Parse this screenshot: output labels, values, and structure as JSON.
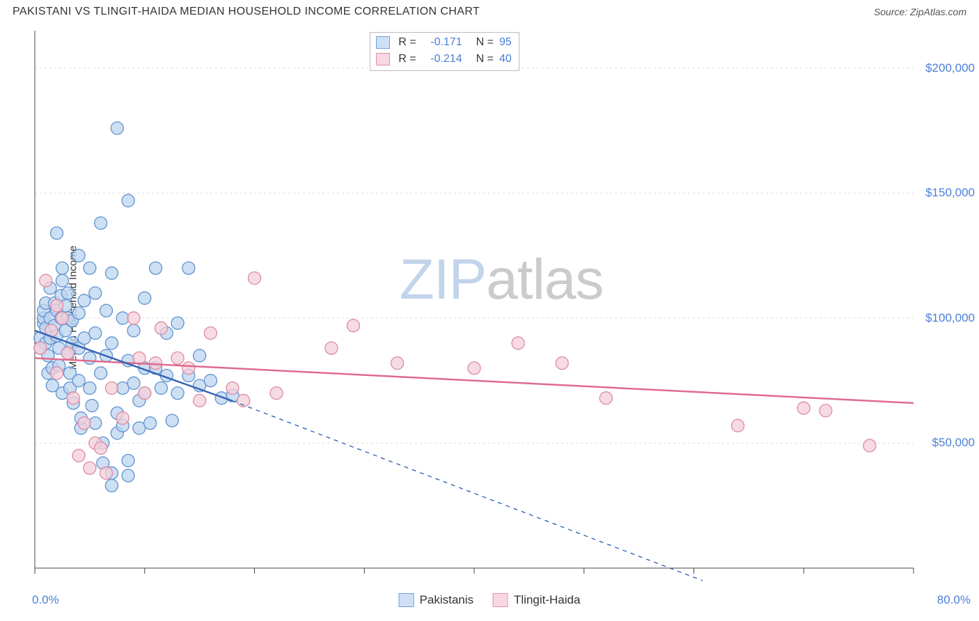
{
  "header": {
    "title": "PAKISTANI VS TLINGIT-HAIDA MEDIAN HOUSEHOLD INCOME CORRELATION CHART",
    "source": "Source: ZipAtlas.com"
  },
  "watermark": {
    "part1": "ZIP",
    "part2": "atlas"
  },
  "y_axis": {
    "label": "Median Household Income",
    "min": 0,
    "max": 215000,
    "ticks": [
      50000,
      100000,
      150000,
      200000
    ],
    "tick_labels": [
      "$50,000",
      "$100,000",
      "$150,000",
      "$200,000"
    ],
    "grid_at": [
      50000,
      100000,
      150000,
      200000
    ],
    "grid_color": "#dadada"
  },
  "x_axis": {
    "min": 0,
    "max": 80,
    "min_label": "0.0%",
    "max_label": "80.0%",
    "ticks": [
      0,
      10,
      20,
      30,
      40,
      50,
      60,
      70,
      80
    ]
  },
  "axis_line_color": "#444444",
  "correlation_legend": {
    "rows": [
      {
        "swatch_fill": "#cfe0f5",
        "swatch_border": "#6f9fd8",
        "r_label": "R = ",
        "r_value": "-0.171",
        "n_label": "N = ",
        "n_value": "95"
      },
      {
        "swatch_fill": "#f8d7e0",
        "swatch_border": "#e48faa",
        "r_label": "R = ",
        "r_value": "-0.214",
        "n_label": "N = ",
        "n_value": "40"
      }
    ]
  },
  "bottom_legend": {
    "items": [
      {
        "swatch_fill": "#cfe0f5",
        "swatch_border": "#6f9fd8",
        "label": "Pakistanis"
      },
      {
        "swatch_fill": "#f8d7e0",
        "swatch_border": "#e48faa",
        "label": "Tlingit-Haida"
      }
    ]
  },
  "series": {
    "blue": {
      "fill": "#bcd4ef",
      "stroke": "#5f92cf",
      "opacity": 0.75,
      "radius": 9,
      "points": [
        [
          0.5,
          92000
        ],
        [
          0.5,
          88000
        ],
        [
          0.8,
          98000
        ],
        [
          0.8,
          100000
        ],
        [
          0.8,
          103000
        ],
        [
          1.0,
          106000
        ],
        [
          1.0,
          96000
        ],
        [
          1.0,
          90000
        ],
        [
          1.2,
          85000
        ],
        [
          1.2,
          78000
        ],
        [
          1.4,
          112000
        ],
        [
          1.4,
          100000
        ],
        [
          1.4,
          92000
        ],
        [
          1.6,
          80000
        ],
        [
          1.6,
          73000
        ],
        [
          1.8,
          106000
        ],
        [
          1.8,
          97000
        ],
        [
          2.0,
          134000
        ],
        [
          2.0,
          103000
        ],
        [
          2.0,
          93000
        ],
        [
          2.2,
          88000
        ],
        [
          2.2,
          81000
        ],
        [
          2.4,
          109000
        ],
        [
          2.4,
          100000
        ],
        [
          2.5,
          120000
        ],
        [
          2.5,
          115000
        ],
        [
          2.5,
          70000
        ],
        [
          2.8,
          105000
        ],
        [
          2.8,
          95000
        ],
        [
          3.0,
          110000
        ],
        [
          3.0,
          100000
        ],
        [
          3.0,
          86000
        ],
        [
          3.2,
          78000
        ],
        [
          3.2,
          72000
        ],
        [
          3.4,
          99000
        ],
        [
          3.4,
          90000
        ],
        [
          3.5,
          66000
        ],
        [
          4.0,
          125000
        ],
        [
          4.0,
          102000
        ],
        [
          4.0,
          88000
        ],
        [
          4.0,
          75000
        ],
        [
          4.2,
          56000
        ],
        [
          4.2,
          60000
        ],
        [
          4.5,
          107000
        ],
        [
          4.5,
          92000
        ],
        [
          5.0,
          120000
        ],
        [
          5.0,
          84000
        ],
        [
          5.0,
          72000
        ],
        [
          5.2,
          65000
        ],
        [
          5.5,
          110000
        ],
        [
          5.5,
          94000
        ],
        [
          5.5,
          58000
        ],
        [
          6.0,
          138000
        ],
        [
          6.0,
          78000
        ],
        [
          6.2,
          42000
        ],
        [
          6.2,
          50000
        ],
        [
          6.5,
          103000
        ],
        [
          6.5,
          85000
        ],
        [
          7.0,
          118000
        ],
        [
          7.0,
          90000
        ],
        [
          7.0,
          38000
        ],
        [
          7.0,
          33000
        ],
        [
          7.5,
          176000
        ],
        [
          7.5,
          62000
        ],
        [
          7.5,
          54000
        ],
        [
          8.0,
          100000
        ],
        [
          8.0,
          72000
        ],
        [
          8.0,
          57000
        ],
        [
          8.5,
          147000
        ],
        [
          8.5,
          83000
        ],
        [
          8.5,
          43000
        ],
        [
          8.5,
          37000
        ],
        [
          9.0,
          95000
        ],
        [
          9.0,
          74000
        ],
        [
          9.5,
          67000
        ],
        [
          9.5,
          56000
        ],
        [
          10.0,
          108000
        ],
        [
          10.0,
          80000
        ],
        [
          10.0,
          70000
        ],
        [
          10.5,
          58000
        ],
        [
          11.0,
          120000
        ],
        [
          11.0,
          80000
        ],
        [
          11.5,
          72000
        ],
        [
          12.0,
          94000
        ],
        [
          12.0,
          77000
        ],
        [
          12.5,
          59000
        ],
        [
          13.0,
          98000
        ],
        [
          13.0,
          70000
        ],
        [
          14.0,
          120000
        ],
        [
          14.0,
          77000
        ],
        [
          15.0,
          85000
        ],
        [
          15.0,
          73000
        ],
        [
          16.0,
          75000
        ],
        [
          17.0,
          68000
        ],
        [
          18.0,
          69000
        ]
      ],
      "trend": {
        "color": "#3664b4",
        "width": 2.5,
        "solid_from_x": 0,
        "solid_to_x": 18,
        "y_at_x0": 95000,
        "y_at_xmax": -30000
      }
    },
    "pink": {
      "fill": "#f4cfd9",
      "stroke": "#de89a3",
      "opacity": 0.75,
      "radius": 9,
      "points": [
        [
          0.5,
          88000
        ],
        [
          1.0,
          115000
        ],
        [
          1.5,
          95000
        ],
        [
          2.0,
          105000
        ],
        [
          2.0,
          78000
        ],
        [
          2.5,
          100000
        ],
        [
          3.0,
          86000
        ],
        [
          3.5,
          68000
        ],
        [
          4.0,
          45000
        ],
        [
          4.5,
          58000
        ],
        [
          5.0,
          40000
        ],
        [
          5.5,
          50000
        ],
        [
          6.0,
          48000
        ],
        [
          6.5,
          38000
        ],
        [
          7.0,
          72000
        ],
        [
          8.0,
          60000
        ],
        [
          9.0,
          100000
        ],
        [
          9.5,
          84000
        ],
        [
          10.0,
          70000
        ],
        [
          11.0,
          82000
        ],
        [
          11.5,
          96000
        ],
        [
          13.0,
          84000
        ],
        [
          14.0,
          80000
        ],
        [
          15.0,
          67000
        ],
        [
          16.0,
          94000
        ],
        [
          18.0,
          72000
        ],
        [
          19.0,
          67000
        ],
        [
          20.0,
          116000
        ],
        [
          22.0,
          70000
        ],
        [
          27.0,
          88000
        ],
        [
          29.0,
          97000
        ],
        [
          33.0,
          82000
        ],
        [
          40.0,
          80000
        ],
        [
          44.0,
          90000
        ],
        [
          48.0,
          82000
        ],
        [
          52.0,
          68000
        ],
        [
          64.0,
          57000
        ],
        [
          70.0,
          64000
        ],
        [
          72.0,
          63000
        ],
        [
          76.0,
          49000
        ]
      ],
      "trend": {
        "color": "#e06a8d",
        "width": 2.5,
        "y_at_x0": 84000,
        "y_at_xmax": 66000
      }
    }
  }
}
